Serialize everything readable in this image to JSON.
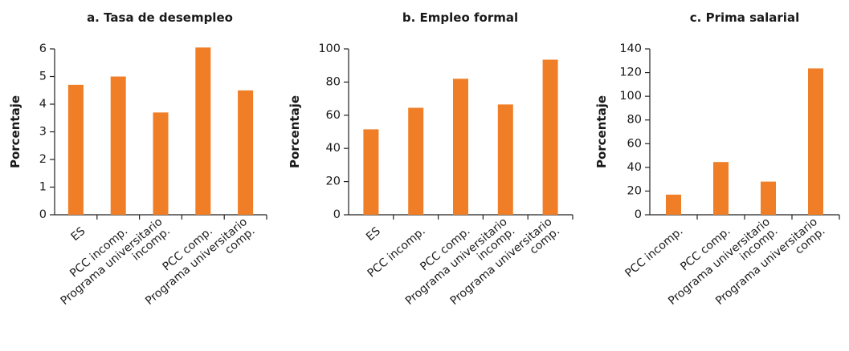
{
  "colors": {
    "bar": "#F07E26",
    "axis": "#222222",
    "text": "#1a1a1a"
  },
  "chart_data": [
    {
      "type": "bar",
      "title": "a. Tasa de desempleo",
      "ylabel": "Porcentaje",
      "xlabel": "",
      "ylim": [
        0,
        6
      ],
      "yticks": [
        0,
        1,
        2,
        3,
        4,
        5,
        6
      ],
      "categories": [
        [
          "ES"
        ],
        [
          "PCC incomp."
        ],
        [
          "Programa universitario",
          "incomp."
        ],
        [
          "PCC comp."
        ],
        [
          "Programa universitario",
          "comp."
        ]
      ],
      "values": [
        4.7,
        5.0,
        3.7,
        6.05,
        4.5
      ]
    },
    {
      "type": "bar",
      "title": "b. Empleo formal",
      "ylabel": "Porcentaje",
      "xlabel": "",
      "ylim": [
        0,
        100
      ],
      "yticks": [
        0,
        20,
        40,
        60,
        80,
        100
      ],
      "categories": [
        [
          "ES"
        ],
        [
          "PCC incomp."
        ],
        [
          "PCC comp."
        ],
        [
          "Programa universitario",
          "incomp."
        ],
        [
          "Programa universitario",
          "comp."
        ]
      ],
      "values": [
        51.5,
        64.5,
        82,
        66.5,
        93.5
      ]
    },
    {
      "type": "bar",
      "title": "c. Prima salarial",
      "ylabel": "Porcentaje",
      "xlabel": "",
      "ylim": [
        0,
        140
      ],
      "yticks": [
        0,
        20,
        40,
        60,
        80,
        100,
        120,
        140
      ],
      "categories": [
        [
          "PCC incomp."
        ],
        [
          "PCC comp."
        ],
        [
          "Programa universitario",
          "incomp."
        ],
        [
          "Programa universitario",
          "comp."
        ]
      ],
      "values": [
        17,
        44.5,
        28,
        123.5
      ]
    }
  ]
}
